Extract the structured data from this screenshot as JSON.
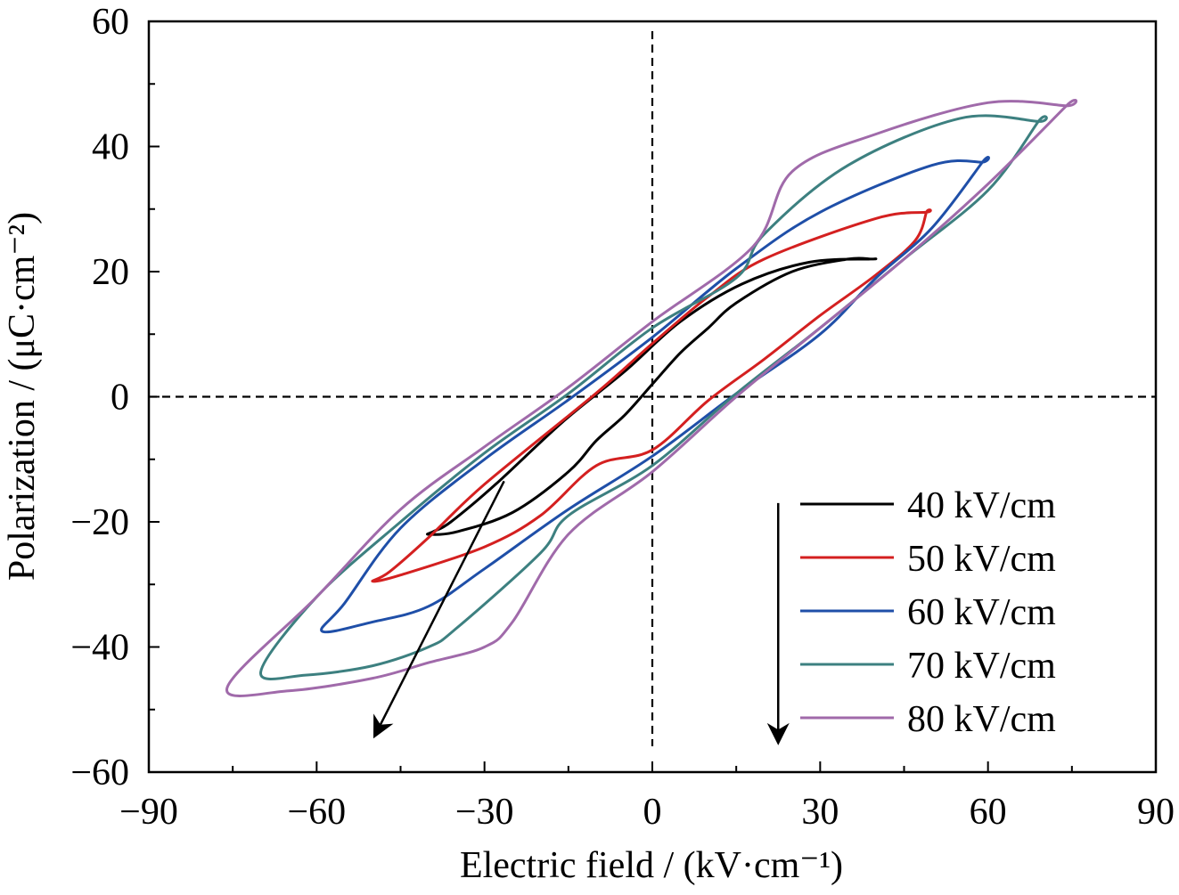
{
  "chart_data": {
    "type": "line",
    "title": "",
    "xlabel": "Electric field / (kV·cm⁻¹)",
    "ylabel": "Polarization / (μC·cm⁻²)",
    "xlim": [
      -90,
      90
    ],
    "ylim": [
      -60,
      60
    ],
    "xticks": [
      -90,
      -60,
      -30,
      0,
      30,
      60,
      90
    ],
    "yticks": [
      -60,
      -40,
      -20,
      0,
      20,
      40,
      60
    ],
    "xtick_labels": [
      "−90",
      "−60",
      "−30",
      "0",
      "30",
      "60",
      "90"
    ],
    "ytick_labels": [
      "−60",
      "−40",
      "−20",
      "0",
      "20",
      "40",
      "60"
    ],
    "grid": false,
    "legend_position": "bottom-right",
    "reference_lines": {
      "x": 0,
      "y": 0,
      "style": "dashed"
    },
    "annotations": [
      "arrow indicating increasing field (diagonal)",
      "arrow indicating increasing field (legend)"
    ],
    "series": [
      {
        "name": "40 kV/cm",
        "color": "#000000",
        "x": [
          39,
          28,
          16,
          5,
          -5,
          -16,
          -28,
          -36,
          -39,
          -40,
          -35,
          -25,
          -15,
          -10,
          -5,
          0,
          5,
          10,
          15,
          25,
          35,
          39
        ],
        "y": [
          22,
          21.5,
          18,
          12,
          4,
          -4,
          -14,
          -20,
          -21.5,
          -22,
          -21.6,
          -18.5,
          -12,
          -7,
          -3,
          2,
          7,
          11,
          15,
          20,
          22,
          22
        ]
      },
      {
        "name": "50 kV/cm",
        "color": "#d42020",
        "x": [
          49,
          40,
          20,
          10,
          0,
          -10,
          -30,
          -40,
          -47,
          -50,
          -45,
          -30,
          -20,
          -10,
          0,
          10,
          20,
          30,
          40,
          47,
          49
        ],
        "y": [
          29.5,
          28.5,
          22,
          16,
          8.5,
          0.6,
          -14,
          -22.5,
          -28,
          -29.5,
          -28.5,
          -24,
          -19,
          -11,
          -8.5,
          -0.6,
          6,
          13,
          19.5,
          25,
          29.5
        ]
      },
      {
        "name": "60 kV/cm",
        "color": "#1f4fa8",
        "x": [
          59,
          50,
          30,
          15,
          0,
          -15,
          -30,
          -45,
          -55,
          -59,
          -50,
          -40,
          -30,
          -15,
          0,
          15,
          30,
          40,
          50,
          59
        ],
        "y": [
          37.5,
          37,
          29.5,
          20.5,
          9.5,
          -0.5,
          -10,
          -21,
          -33,
          -37.5,
          -36,
          -33.5,
          -27.5,
          -18,
          -9.5,
          0.5,
          10,
          19,
          27,
          37.5
        ]
      },
      {
        "name": "70 kV/cm",
        "color": "#3d8080",
        "x": [
          69,
          55,
          35,
          20,
          15,
          0,
          -15,
          -30,
          -45,
          -60,
          -70,
          -62,
          -50,
          -40,
          -35,
          -20,
          -15,
          0,
          15,
          30,
          45,
          60,
          69
        ],
        "y": [
          44,
          44.5,
          37,
          26,
          19,
          11,
          0.5,
          -9,
          -20,
          -32,
          -44,
          -44.5,
          -43,
          -40,
          -37,
          -25,
          -19,
          -11,
          0.5,
          11,
          22,
          33,
          44
        ]
      },
      {
        "name": "80 kV/cm",
        "color": "#a06aaa",
        "x": [
          74,
          60,
          40,
          25,
          18,
          0,
          -15,
          -30,
          -45,
          -60,
          -76,
          -65,
          -50,
          -40,
          -30,
          -25,
          -15,
          0,
          15,
          30,
          45,
          60,
          74
        ],
        "y": [
          46.5,
          47,
          42,
          36,
          24,
          12,
          1.5,
          -8,
          -18,
          -32,
          -46.5,
          -47,
          -45,
          -42.5,
          -40,
          -36,
          -22,
          -12,
          0,
          11,
          22,
          34,
          46.5
        ]
      }
    ]
  }
}
